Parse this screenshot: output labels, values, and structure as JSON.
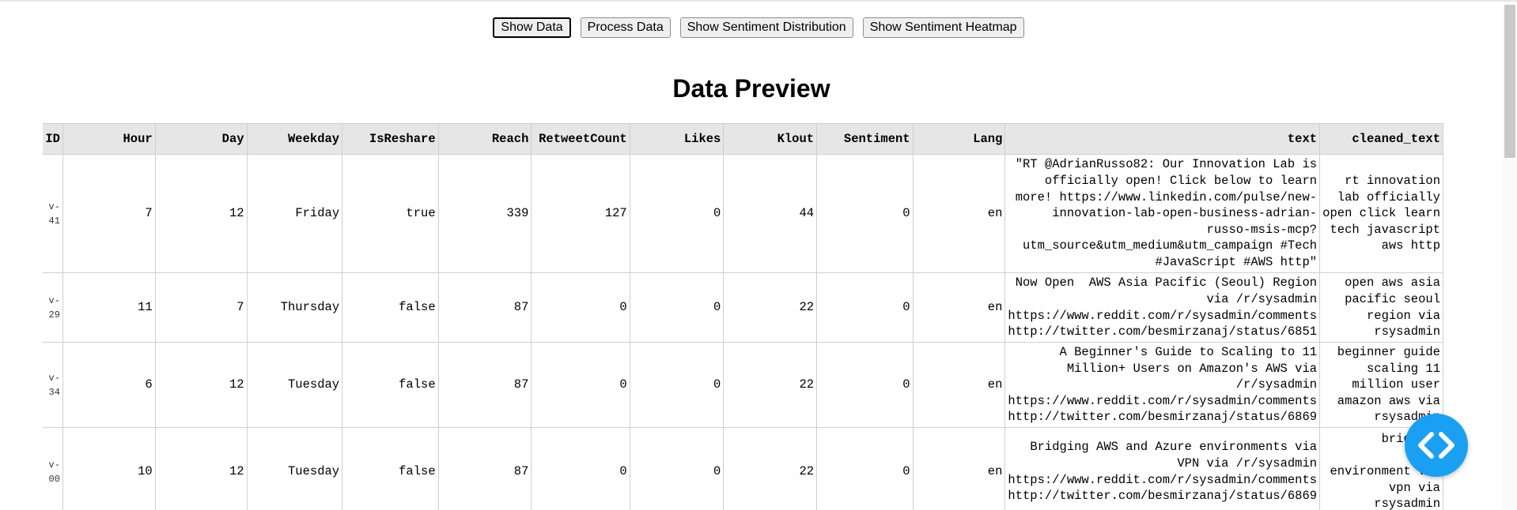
{
  "buttons": [
    {
      "label": "Show Data"
    },
    {
      "label": "Process Data"
    },
    {
      "label": "Show Sentiment Distribution"
    },
    {
      "label": "Show Sentiment Heatmap"
    }
  ],
  "page_title": "Data Preview",
  "table": {
    "headers": [
      "ID",
      "Hour",
      "Day",
      "Weekday",
      "IsReshare",
      "Reach",
      "RetweetCount",
      "Likes",
      "Klout",
      "Sentiment",
      "Lang",
      "text",
      "cleaned_text"
    ],
    "rows": [
      {
        "id": "v-\n41",
        "hour": "7",
        "day": "12",
        "weekday": "Friday",
        "isreshare": "true",
        "reach": "339",
        "retweetcount": "127",
        "likes": "0",
        "klout": "44",
        "sentiment": "0",
        "lang": "en",
        "text": "\"RT @AdrianRusso82: Our Innovation Lab is\nofficially open! Click below to learn\nmore! https://www.linkedin.com/pulse/new-\ninnovation-lab-open-business-adrian-\nrusso-msis-mcp?\nutm_source&utm_medium&utm_campaign #Tech\n#JavaScript #AWS http\"",
        "cleaned_text": "rt innovation\nlab officially\nopen click learn\ntech javascript\naws http"
      },
      {
        "id": "v-\n29",
        "hour": "11",
        "day": "7",
        "weekday": "Thursday",
        "isreshare": "false",
        "reach": "87",
        "retweetcount": "0",
        "likes": "0",
        "klout": "22",
        "sentiment": "0",
        "lang": "en",
        "text": "Now Open  AWS Asia Pacific (Seoul) Region\nvia /r/sysadmin\nhttps://www.reddit.com/r/sysadmin/comments\nhttp://twitter.com/besmirzanaj/status/6851",
        "cleaned_text": "open aws asia\npacific seoul\nregion via\nrsysadmin"
      },
      {
        "id": "v-\n34",
        "hour": "6",
        "day": "12",
        "weekday": "Tuesday",
        "isreshare": "false",
        "reach": "87",
        "retweetcount": "0",
        "likes": "0",
        "klout": "22",
        "sentiment": "0",
        "lang": "en",
        "text": "A Beginner's Guide to Scaling to 11\nMillion+ Users on Amazon's AWS via\n/r/sysadmin\nhttps://www.reddit.com/r/sysadmin/comments\nhttp://twitter.com/besmirzanaj/status/6869",
        "cleaned_text": "beginner guide\nscaling 11\nmillion user\namazon aws via\nrsysadmin"
      },
      {
        "id": "v-\n00",
        "hour": "10",
        "day": "12",
        "weekday": "Tuesday",
        "isreshare": "false",
        "reach": "87",
        "retweetcount": "0",
        "likes": "0",
        "klout": "22",
        "sentiment": "0",
        "lang": "en",
        "text": "Bridging AWS and Azure environments via\nVPN via /r/sysadmin\nhttps://www.reddit.com/r/sysadmin/comments\nhttp://twitter.com/besmirzanaj/status/6869",
        "cleaned_text": "bridging\n\nenvironment via\nvpn via\nrsysadmin"
      }
    ]
  },
  "fab": {
    "icon": "code-icon",
    "color": "#1aa0f2"
  }
}
